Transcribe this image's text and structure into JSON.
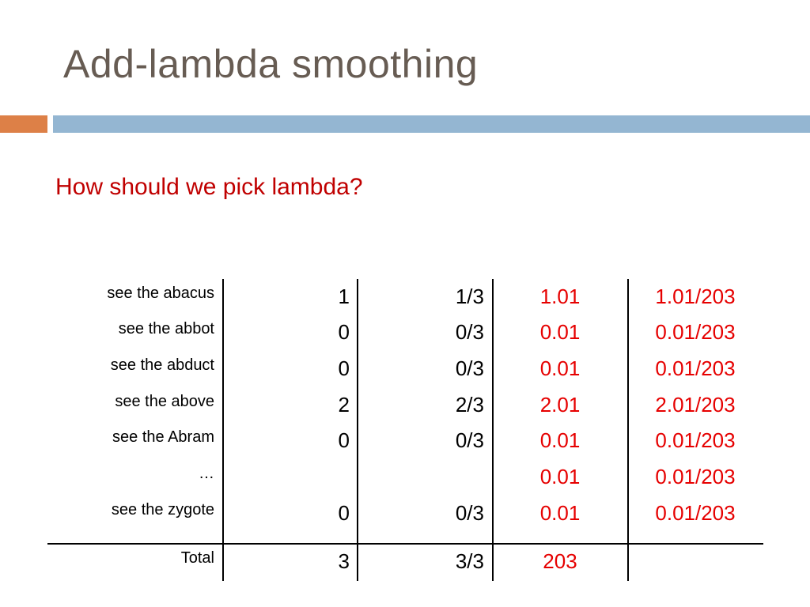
{
  "slide": {
    "title": "Add-lambda smoothing",
    "subtitle": "How should we pick lambda?"
  },
  "colors": {
    "title": "#675c53",
    "accent_orange": "#dd8047",
    "accent_blue": "#94b6d2",
    "highlight_red": "#e60000"
  },
  "table": {
    "rows": [
      {
        "label": "see the abacus",
        "count": "1",
        "frac": "1/3",
        "smoothed": "1.01",
        "prob": "1.01/203"
      },
      {
        "label": "see the abbot",
        "count": "0",
        "frac": "0/3",
        "smoothed": "0.01",
        "prob": "0.01/203"
      },
      {
        "label": "see the abduct",
        "count": "0",
        "frac": "0/3",
        "smoothed": "0.01",
        "prob": "0.01/203"
      },
      {
        "label": "see the above",
        "count": "2",
        "frac": "2/3",
        "smoothed": "2.01",
        "prob": "2.01/203"
      },
      {
        "label": "see the Abram",
        "count": "0",
        "frac": "0/3",
        "smoothed": "0.01",
        "prob": "0.01/203"
      },
      {
        "label": "…",
        "count": "",
        "frac": "",
        "smoothed": "0.01",
        "prob": "0.01/203"
      },
      {
        "label": "see the zygote",
        "count": "0",
        "frac": "0/3",
        "smoothed": "0.01",
        "prob": "0.01/203"
      }
    ],
    "total": {
      "label": "Total",
      "count": "3",
      "frac": "3/3",
      "smoothed": "203",
      "prob": ""
    }
  }
}
